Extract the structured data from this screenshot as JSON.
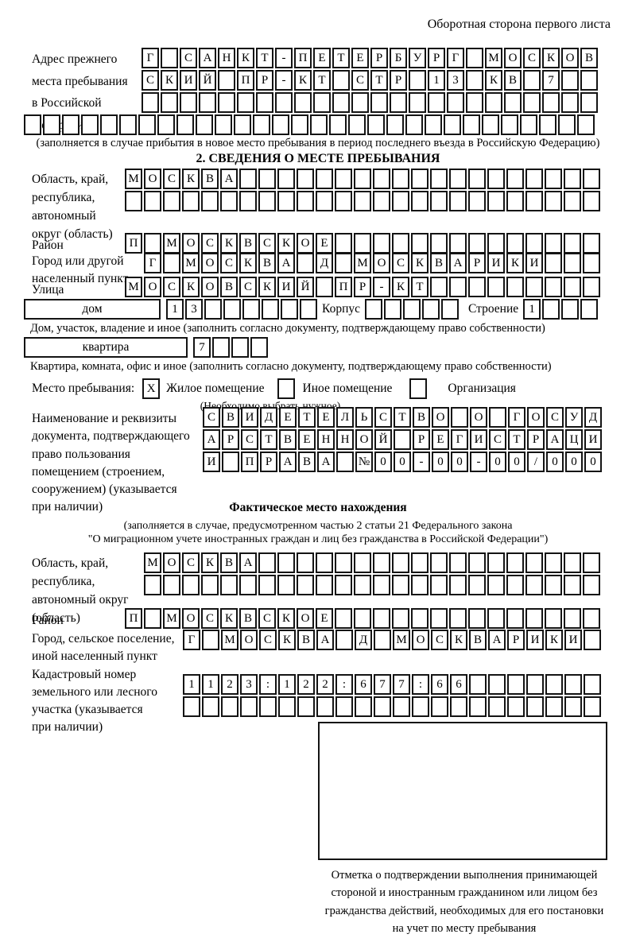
{
  "page": {
    "header_note": "Оборотная сторона первого листа"
  },
  "prev_address": {
    "label": "Адрес прежнего\nместа пребывания\nв Российской\nФедерации",
    "rows": [
      "Г САНКТ-ПЕТЕРБУРГ МОСКОВ",
      "СКИЙ ПР-КТ СТР 13 КВ 7  ",
      "                        ",
      "                              "
    ],
    "note": "(заполняется в случае прибытия в новое место пребывания в период последнего въезда в Российскую Федерацию)"
  },
  "section2": {
    "title": "2. СВЕДЕНИЯ О МЕСТЕ ПРЕБЫВАНИЯ",
    "region": {
      "label": "Область, край,\nреспублика,\nавтономный\nокруг (область)",
      "rows": [
        "МОСКВА                   ",
        "                         "
      ]
    },
    "district": {
      "label": "Район",
      "cells": "П МОСКВСКОЕ              "
    },
    "city": {
      "label": "Город или другой\nнаселенный пункт",
      "cells": "Г МОСКВА Д МОСКВАРИКИ   "
    },
    "street": {
      "label": "Улица",
      "cells": "МОСКОВСКИЙ ПР-КТ         "
    },
    "house": {
      "box_label": "дом",
      "cells": "13      ",
      "korpus_label": "Корпус",
      "korpus_cells": "     ",
      "stroenie_label": "Строение",
      "stroenie_cells": "1   ",
      "caption": "Дом, участок, владение и иное (заполнить согласно документу, подтверждающему право собственности)"
    },
    "apartment": {
      "box_label": "квартира",
      "cells": "7   ",
      "caption": "Квартира, комната, офис и иное (заполнить согласно документу, подтверждающему право собственности)"
    },
    "stay_type": {
      "label": "Место пребывания:",
      "option1_value": "X",
      "option1": "Жилое помещение",
      "option2_value": " ",
      "option2": "Иное помещение",
      "option3_value": " ",
      "option3": "Организация",
      "hint": "(Необходимо выбрать нужное)"
    },
    "doc": {
      "label": "Наименование и реквизиты\nдокумента, подтверждающего\nправо пользования\nпомещением (строением,\nсооружением) (указывается\nпри наличии)",
      "rows": [
        "СВИДЕТЕЛЬСТВО О ГОСУД",
        "АРСТВЕННОЙ РЕГИСТРАЦИ",
        "И ПРАВА №00-00-00/000"
      ]
    }
  },
  "actual_location": {
    "title": "Фактическое место нахождения",
    "note1": "(заполняется в случае, предусмотренном частью 2 статьи 21 Федерального закона",
    "note2": "\"О миграционном учете иностранных граждан и лиц без гражданства в Российской Федерации\")",
    "region": {
      "label": "Область, край,\nреспублика,\nавтономный округ\n(область)",
      "rows": [
        "МОСКВА                  ",
        "                        "
      ]
    },
    "district": {
      "label": "Район",
      "cells": "П МОСКВСКОЕ              "
    },
    "city": {
      "label": "Город, сельское поселение,\nиной населенный пункт",
      "cells": "Г МОСКВА Д МОСКВАРИКИ "
    },
    "cadastral": {
      "label": "Кадастровый номер\nземельного или лесного\nучастка (указывается\nпри наличии)",
      "rows": [
        "1123:122:677:66       ",
        "                      "
      ]
    }
  },
  "confirmation": {
    "caption": "Отметка о подтверждении выполнения принимающей\nстороной и иностранным гражданином или лицом без\nгражданства действий, необходимых для его постановки\nна учет по месту пребывания"
  }
}
